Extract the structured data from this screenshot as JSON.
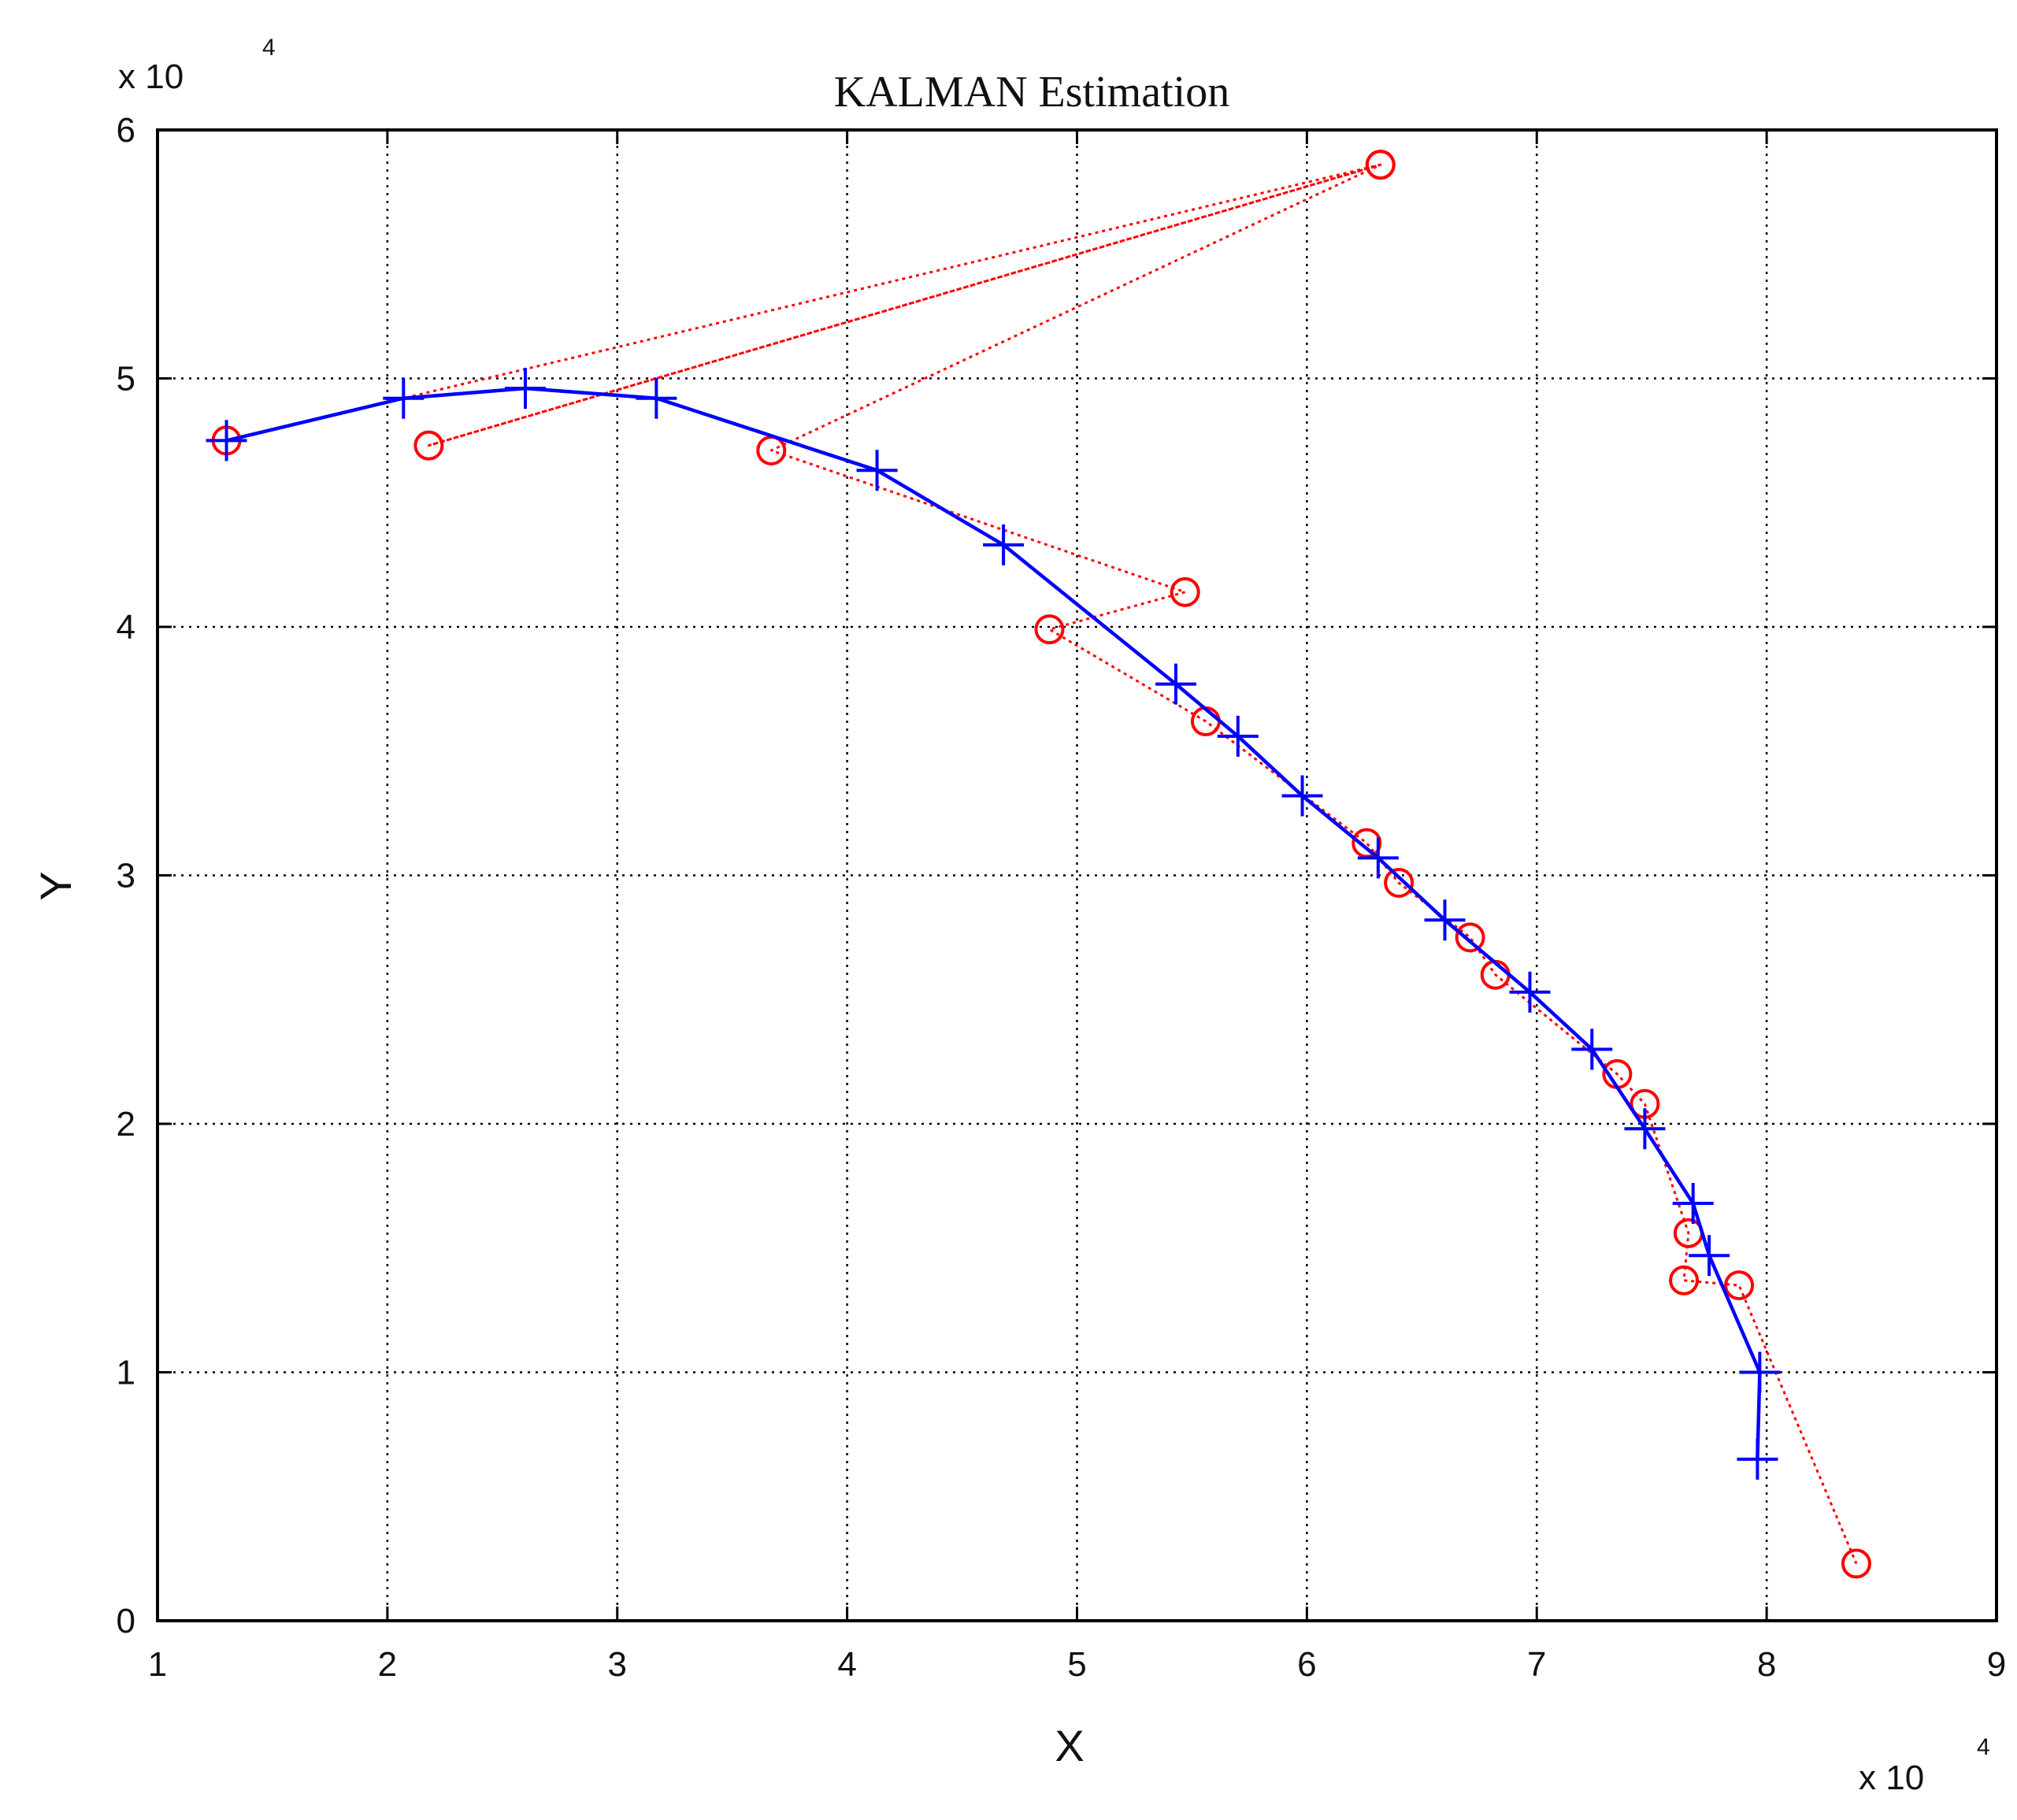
{
  "chart_data": {
    "type": "line",
    "title": "KALMAN Estimation",
    "xlabel": "X",
    "ylabel": "Y",
    "x_multiplier_label": "x 10",
    "y_multiplier_label": "x 10",
    "multiplier_exponent": "4",
    "xlim": [
      1,
      9
    ],
    "ylim": [
      0,
      6
    ],
    "x_ticks": [
      "1",
      "2",
      "3",
      "4",
      "5",
      "6",
      "7",
      "8",
      "9"
    ],
    "y_ticks": [
      "0",
      "1",
      "2",
      "3",
      "4",
      "5",
      "6"
    ],
    "grid": true,
    "series": [
      {
        "marker": "o",
        "line_style": "dotted",
        "color": "#ff0000",
        "x": [
          1.3,
          6.32,
          2.18,
          6.32,
          3.67,
          5.47,
          4.88,
          5.56,
          6.26,
          6.4,
          6.71,
          6.82,
          7.35,
          7.47,
          7.66,
          7.64,
          7.88,
          8.39
        ],
        "y": [
          4.75,
          5.86,
          4.73,
          5.86,
          4.71,
          4.14,
          3.99,
          3.62,
          3.13,
          2.97,
          2.75,
          2.6,
          2.2,
          2.08,
          1.56,
          1.37,
          1.35,
          0.23
        ]
      },
      {
        "marker": "+",
        "line_style": "solid",
        "color": "#0000ff",
        "x": [
          1.3,
          2.07,
          2.6,
          3.17,
          4.13,
          4.68,
          5.43,
          5.7,
          5.98,
          6.31,
          6.6,
          6.97,
          7.24,
          7.47,
          7.68,
          7.75,
          7.97,
          7.96
        ],
        "y": [
          4.75,
          4.92,
          4.96,
          4.92,
          4.63,
          4.33,
          3.77,
          3.56,
          3.32,
          3.07,
          2.82,
          2.53,
          2.3,
          1.98,
          1.68,
          1.47,
          1.0,
          0.65
        ]
      }
    ]
  },
  "colors": {
    "background": "#ffffff",
    "axes": "#000000",
    "grid": "#000000"
  }
}
